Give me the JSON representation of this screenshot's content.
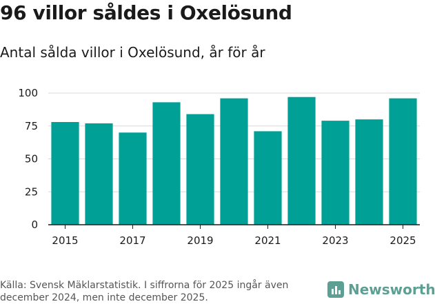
{
  "title": "96 villor såldes i Oxelösund",
  "subtitle": "Antal sålda villor i Oxelösund, år för år",
  "source": "Källa: Svensk Mäklarstatistik. I siffrorna för 2025 ingår även december 2024, men inte december 2025.",
  "logo": {
    "name": "Newsworthy",
    "color": "#5e9f93"
  },
  "colors": {
    "bar": "#00a096",
    "grid": "#d9d9d9",
    "axis": "#1a1a1a"
  },
  "chart_data": {
    "type": "bar",
    "title": "96 villor såldes i Oxelösund",
    "subtitle": "Antal sålda villor i Oxelösund, år för år",
    "xlabel": "",
    "ylabel": "",
    "categories": [
      "2015",
      "2016",
      "2017",
      "2018",
      "2019",
      "2020",
      "2021",
      "2022",
      "2023",
      "2024",
      "2025"
    ],
    "values": [
      78,
      77,
      70,
      93,
      84,
      96,
      71,
      97,
      79,
      80,
      96
    ],
    "xtick_labels": [
      "2015",
      "2017",
      "2019",
      "2021",
      "2023",
      "2025"
    ],
    "ylim": [
      0,
      100
    ],
    "yticks": [
      0,
      25,
      50,
      75,
      100
    ],
    "grid": true
  }
}
